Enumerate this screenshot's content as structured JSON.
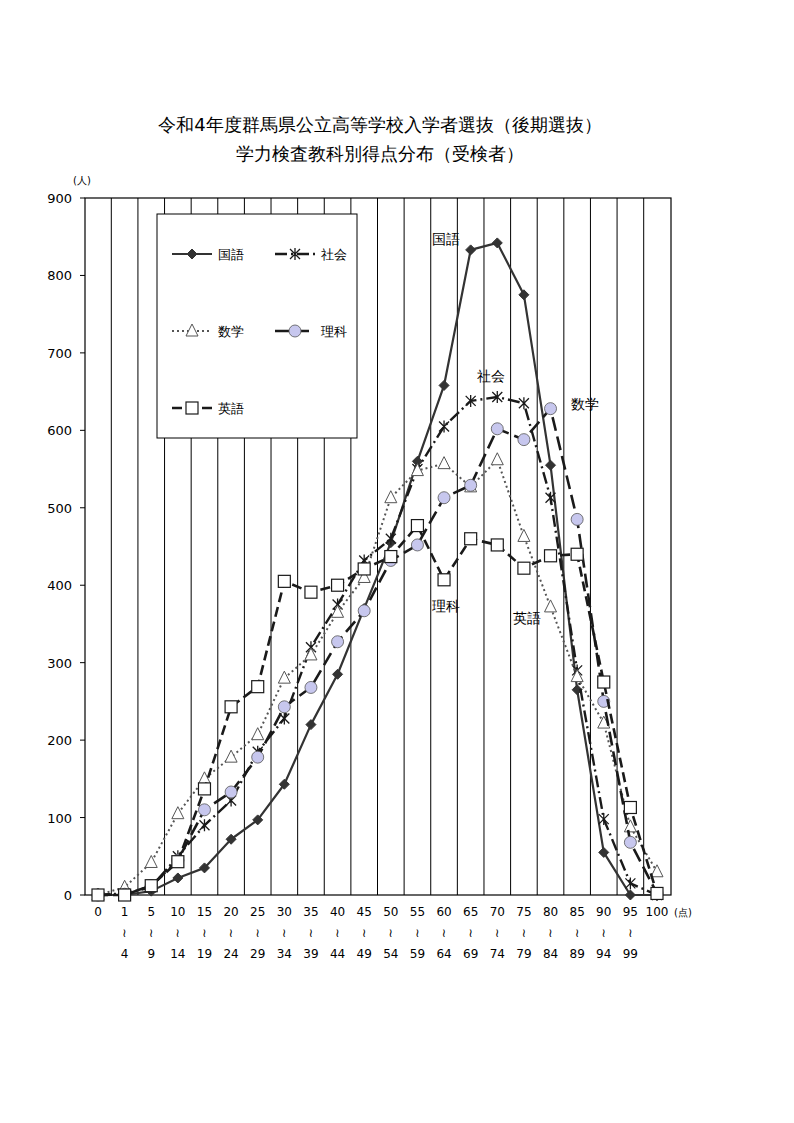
{
  "chart_data": {
    "type": "line",
    "title": "令和4年度群馬県公立高等学校入学者選抜（後期選抜）",
    "subtitle": "学力検査教科別得点分布（受検者）",
    "y_label": "(人)",
    "x_label": "(点)",
    "categories": [
      "0",
      "1\n≀\n4",
      "5\n≀\n9",
      "10\n≀\n14",
      "15\n≀\n19",
      "20\n≀\n24",
      "25\n≀\n29",
      "30\n≀\n34",
      "35\n≀\n39",
      "40\n≀\n44",
      "45\n≀\n49",
      "50\n≀\n54",
      "55\n≀\n59",
      "60\n≀\n64",
      "65\n≀\n69",
      "70\n≀\n74",
      "75\n≀\n79",
      "80\n≀\n84",
      "85\n≀\n89",
      "90\n≀\n94",
      "95\n≀\n99",
      "100"
    ],
    "series": [
      {
        "name": "国語",
        "color": "#333333",
        "marker": "diamond",
        "line_style": "solid",
        "values": [
          0,
          0,
          5,
          22,
          35,
          72,
          97,
          143,
          220,
          285,
          370,
          455,
          560,
          658,
          833,
          842,
          775,
          555,
          265,
          55,
          0,
          0
        ]
      },
      {
        "name": "社会",
        "color": "#1a1a1a",
        "marker": "asterisk",
        "line_style": "dashdot",
        "values": [
          0,
          2,
          10,
          50,
          90,
          122,
          185,
          228,
          320,
          375,
          432,
          460,
          550,
          605,
          638,
          643,
          635,
          513,
          290,
          98,
          15,
          0
        ]
      },
      {
        "name": "数学",
        "color": "#555555",
        "marker": "triangle",
        "line_style": "dotted",
        "values": [
          0,
          10,
          42,
          105,
          150,
          178,
          207,
          280,
          310,
          365,
          410,
          513,
          548,
          557,
          527,
          562,
          463,
          372,
          282,
          222,
          88,
          30
        ]
      },
      {
        "name": "理科",
        "color": "#1a1a1a",
        "marker": "circle",
        "line_style": "long_dash",
        "values": [
          0,
          1,
          12,
          45,
          110,
          133,
          178,
          243,
          268,
          327,
          367,
          432,
          452,
          513,
          529,
          602,
          588,
          628,
          485,
          250,
          68,
          2
        ]
      },
      {
        "name": "英語",
        "color": "#1a1a1a",
        "marker": "square",
        "line_style": "dashed",
        "values": [
          0,
          0,
          12,
          43,
          137,
          243,
          269,
          405,
          391,
          400,
          421,
          437,
          477,
          407,
          460,
          452,
          422,
          438,
          440,
          275,
          113,
          2
        ]
      }
    ],
    "ylim": [
      0,
      900
    ],
    "yticks": [
      0,
      100,
      200,
      300,
      400,
      500,
      600,
      700,
      800,
      900
    ],
    "grid": "x",
    "legend": "upper left"
  }
}
